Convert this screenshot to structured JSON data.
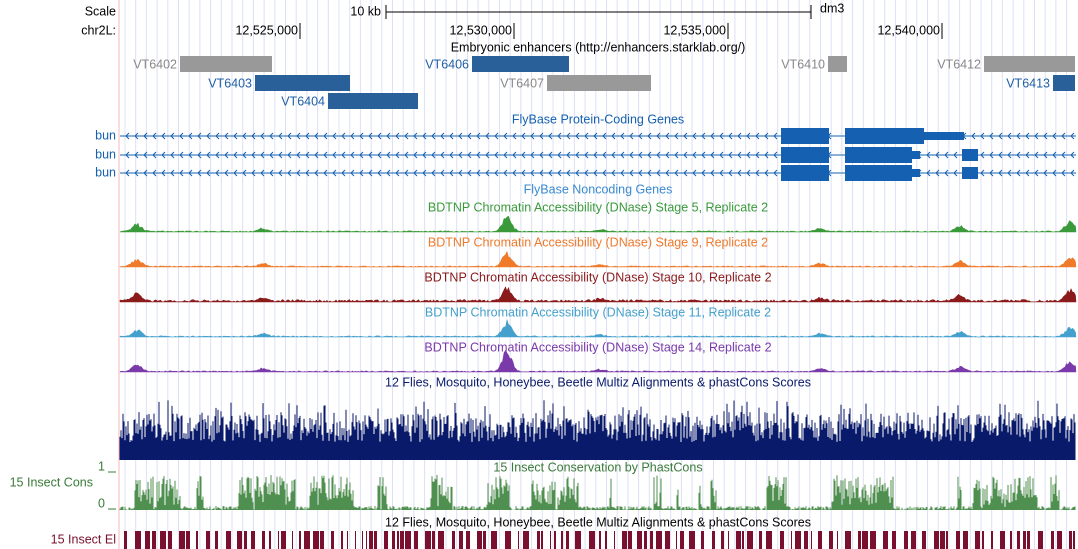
{
  "header": {
    "scale_label": "Scale",
    "chrom_label": "chr2L:",
    "scale_bar_label": "10 kb",
    "assembly": "dm3"
  },
  "ruler": {
    "ticks": [
      "12,525,000",
      "12,530,000",
      "12,535,000",
      "12,540,000"
    ]
  },
  "tracks": {
    "enhancers": {
      "title": "Embryonic enhancers (http://enhancers.starklab.org/)",
      "items": [
        "VT6402",
        "VT6403",
        "VT6404",
        "VT6406",
        "VT6407",
        "VT6410",
        "VT6412",
        "VT6413"
      ]
    },
    "protein_genes": {
      "title": "FlyBase Protein-Coding Genes",
      "genes": [
        "bun",
        "bun",
        "bun"
      ]
    },
    "noncoding_genes": {
      "title": "FlyBase Noncoding Genes"
    },
    "dnase": [
      "BDTNP Chromatin Accessibility (DNase) Stage 5, Replicate 2",
      "BDTNP Chromatin Accessibility (DNase) Stage 9, Replicate 2",
      "BDTNP Chromatin Accessibility (DNase) Stage 10, Replicate 2",
      "BDTNP Chromatin Accessibility (DNase) Stage 11, Replicate 2",
      "BDTNP Chromatin Accessibility (DNase) Stage 14, Replicate 2"
    ],
    "multiz": {
      "title": "12 Flies, Mosquito, Honeybee, Beetle Multiz Alignments & phastCons Scores"
    },
    "insect_cons": {
      "label": "15 Insect Cons",
      "title": "15 Insect Conservation by PhastCons",
      "max_label": "1",
      "min_label": "0"
    },
    "insect_el": {
      "label": "15 Insect El",
      "title": "12 Flies, Mosquito, Honeybee, Beetle Multiz Alignments & phastCons Scores"
    }
  }
}
